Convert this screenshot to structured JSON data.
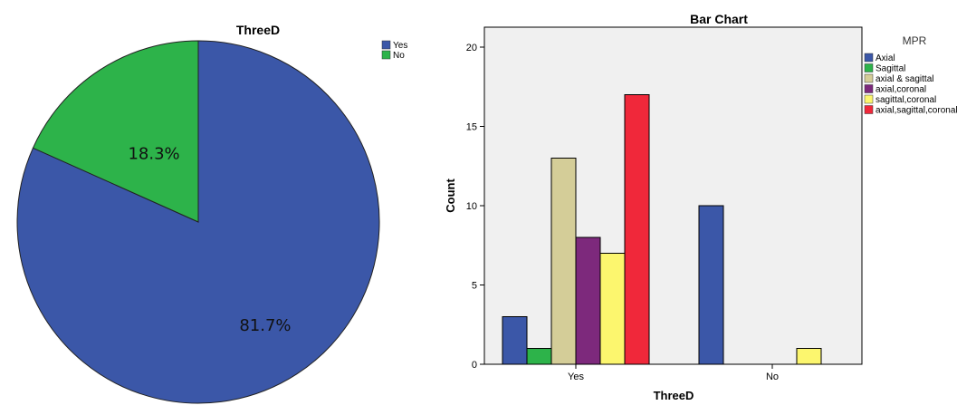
{
  "chart_data": [
    {
      "type": "pie",
      "title": "ThreeD",
      "categories": [
        "Yes",
        "No"
      ],
      "values": [
        81.7,
        18.3
      ],
      "labels": [
        "81.7%",
        "18.3%"
      ],
      "colors": [
        "#3b57a8",
        "#2db34a"
      ],
      "legend": "top-right"
    },
    {
      "type": "bar",
      "title": "Bar Chart",
      "xlabel": "ThreeD",
      "ylabel": "Count",
      "categories": [
        "Yes",
        "No"
      ],
      "ylim": [
        0,
        20
      ],
      "yticks": [
        0,
        5,
        10,
        15,
        20
      ],
      "legend_title": "MPR",
      "legend": "right",
      "grid": false,
      "series": [
        {
          "name": "Axial",
          "color": "#3b57a8",
          "values": [
            3,
            10
          ]
        },
        {
          "name": "Sagittal",
          "color": "#2db34a",
          "values": [
            1,
            0
          ]
        },
        {
          "name": "axial & sagittal",
          "color": "#d4cd98",
          "values": [
            13,
            0
          ]
        },
        {
          "name": "axial,coronal",
          "color": "#7d297c",
          "values": [
            8,
            0
          ]
        },
        {
          "name": "sagittal,coronal",
          "color": "#fcf66e",
          "values": [
            7,
            1
          ]
        },
        {
          "name": "axial,sagittal,coronal",
          "color": "#f0283a",
          "values": [
            17,
            0
          ]
        }
      ]
    }
  ]
}
